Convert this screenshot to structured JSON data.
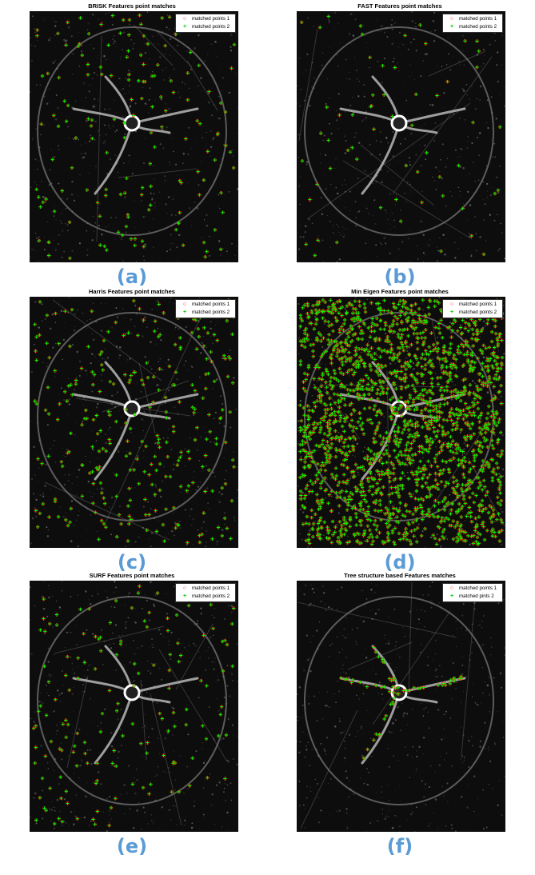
{
  "panels": [
    {
      "id": "a",
      "title": "BRISK Features point matches",
      "legend": [
        "matched points 1",
        "matched points 2"
      ],
      "caption": "(a)",
      "density": "low"
    },
    {
      "id": "b",
      "title": "FAST Features point matches",
      "legend": [
        "matched points 1",
        "matched points 2"
      ],
      "caption": "(b)",
      "density": "very-low"
    },
    {
      "id": "c",
      "title": "Harris Features point matches",
      "legend": [
        "matched points 1",
        "matched points 2"
      ],
      "caption": "(c)",
      "density": "medium"
    },
    {
      "id": "d",
      "title": "Min Eigen Features point matches",
      "legend": [
        "matched points 1",
        "matched points 2"
      ],
      "caption": "(d)",
      "density": "very-high"
    },
    {
      "id": "e",
      "title": "SURF Features point matches",
      "legend": [
        "matched points 1",
        "matched points 2"
      ],
      "caption": "(e)",
      "density": "low"
    },
    {
      "id": "f",
      "title": "Tree structure based Features matches",
      "legend": [
        "matched points 1",
        "matched pints 2"
      ],
      "caption": "(f)",
      "density": "branch-only"
    }
  ],
  "colors": {
    "matched_points_1": "#ff0000",
    "matched_points_2": "#00ff00",
    "caption": "#5b9bd5"
  }
}
